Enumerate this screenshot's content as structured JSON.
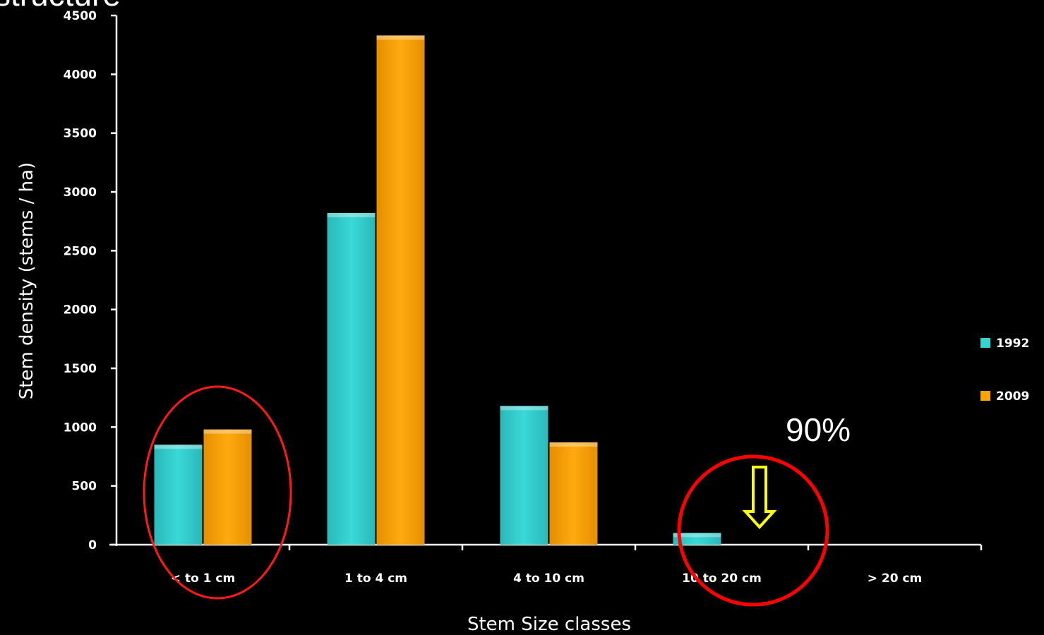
{
  "top_text_fragment": "structure",
  "chart_data": {
    "type": "bar",
    "categories": [
      "< to 1 cm",
      "1 to 4 cm",
      "4 to 10 cm",
      "10 to 20 cm",
      "> 20 cm"
    ],
    "series": [
      {
        "name": "1992",
        "values": [
          850,
          2820,
          1180,
          100,
          0
        ],
        "color": "#37d3d3"
      },
      {
        "name": "2009",
        "values": [
          980,
          4330,
          870,
          0,
          0
        ],
        "color": "#ffa500"
      }
    ],
    "xlabel": "Stem Size classes",
    "ylabel": "Stem density (stems / ha)",
    "ylim": [
      0,
      4500
    ],
    "yticks": [
      0,
      500,
      1000,
      1500,
      2000,
      2500,
      3000,
      3500,
      4000,
      4500
    ],
    "grid": false,
    "legend_position": "right",
    "annotations": {
      "percent_text": "90%",
      "highlight_colors": {
        "circle": "#ff0000",
        "arrow": "#ffff00"
      }
    }
  }
}
